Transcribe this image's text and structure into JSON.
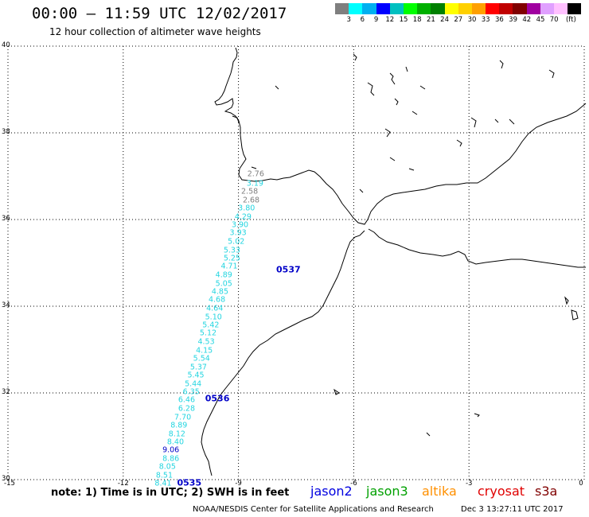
{
  "header": {
    "title": "00:00 – 11:59 UTC 12/02/2017",
    "subtitle": "12 hour collection of altimeter wave heights"
  },
  "color_scale": {
    "unit": "(ft)",
    "colors": [
      "#7f7f7f",
      "#00ffff",
      "#00b0f0",
      "#0000ff",
      "#00c0c0",
      "#00ff00",
      "#00b000",
      "#008000",
      "#ffff00",
      "#ffd000",
      "#ffa000",
      "#ff0000",
      "#c00000",
      "#800000",
      "#a000a0",
      "#e0a0ff",
      "#ffc0ff",
      "#000000"
    ],
    "labels": [
      "3",
      "6",
      "9",
      "12",
      "15",
      "18",
      "21",
      "24",
      "27",
      "30",
      "33",
      "36",
      "39",
      "42",
      "45",
      "70"
    ]
  },
  "map": {
    "lat_labels": [
      "40",
      "38",
      "36",
      "34",
      "32",
      "30"
    ],
    "lon_labels": [
      "-15",
      "-12",
      "-9",
      "-6",
      "-3",
      "0"
    ],
    "passes": [
      "0537",
      "0536",
      "0535"
    ]
  },
  "measurements": [
    {
      "lat": 37.04,
      "lon": -8.55,
      "value": "2.76",
      "color": "grey"
    },
    {
      "lat": 36.83,
      "lon": -8.57,
      "value": "3.19",
      "color": "cyan"
    },
    {
      "lat": 36.64,
      "lon": -8.71,
      "value": "2.58",
      "color": "grey"
    },
    {
      "lat": 36.44,
      "lon": -8.67,
      "value": "2.68",
      "color": "grey"
    },
    {
      "lat": 36.26,
      "lon": -8.79,
      "value": "3.80",
      "color": "cyan"
    },
    {
      "lat": 36.06,
      "lon": -8.88,
      "value": "4.29",
      "color": "cyan"
    },
    {
      "lat": 35.87,
      "lon": -8.96,
      "value": "3.90",
      "color": "cyan"
    },
    {
      "lat": 35.68,
      "lon": -9.01,
      "value": "3.93",
      "color": "cyan"
    },
    {
      "lat": 35.48,
      "lon": -9.06,
      "value": "5.02",
      "color": "cyan"
    },
    {
      "lat": 35.28,
      "lon": -9.17,
      "value": "5.33",
      "color": "cyan"
    },
    {
      "lat": 35.1,
      "lon": -9.17,
      "value": "5.25",
      "color": "cyan"
    },
    {
      "lat": 34.91,
      "lon": -9.24,
      "value": "4.71",
      "color": "cyan"
    },
    {
      "lat": 34.71,
      "lon": -9.38,
      "value": "4.89",
      "color": "cyan"
    },
    {
      "lat": 34.52,
      "lon": -9.38,
      "value": "5.05",
      "color": "cyan"
    },
    {
      "lat": 34.33,
      "lon": -9.48,
      "value": "4.85",
      "color": "cyan"
    },
    {
      "lat": 34.14,
      "lon": -9.56,
      "value": "4.68",
      "color": "cyan"
    },
    {
      "lat": 33.94,
      "lon": -9.62,
      "value": "4.64",
      "color": "cyan"
    },
    {
      "lat": 33.75,
      "lon": -9.65,
      "value": "5.10",
      "color": "cyan"
    },
    {
      "lat": 33.56,
      "lon": -9.72,
      "value": "5.42",
      "color": "cyan"
    },
    {
      "lat": 33.37,
      "lon": -9.79,
      "value": "5.12",
      "color": "cyan"
    },
    {
      "lat": 33.17,
      "lon": -9.84,
      "value": "4.53",
      "color": "cyan"
    },
    {
      "lat": 32.98,
      "lon": -9.89,
      "value": "4.15",
      "color": "cyan"
    },
    {
      "lat": 32.78,
      "lon": -9.96,
      "value": "5.54",
      "color": "cyan"
    },
    {
      "lat": 32.59,
      "lon": -10.04,
      "value": "5.37",
      "color": "cyan"
    },
    {
      "lat": 32.4,
      "lon": -10.11,
      "value": "5.45",
      "color": "cyan"
    },
    {
      "lat": 32.2,
      "lon": -10.18,
      "value": "5.44",
      "color": "cyan"
    },
    {
      "lat": 32.01,
      "lon": -10.23,
      "value": "6.35",
      "color": "cyan"
    },
    {
      "lat": 31.83,
      "lon": -10.35,
      "value": "6.46",
      "color": "cyan"
    },
    {
      "lat": 31.64,
      "lon": -10.35,
      "value": "6.28",
      "color": "cyan"
    },
    {
      "lat": 31.44,
      "lon": -10.45,
      "value": "7.70",
      "color": "cyan"
    },
    {
      "lat": 31.24,
      "lon": -10.55,
      "value": "8.89",
      "color": "cyan"
    },
    {
      "lat": 31.05,
      "lon": -10.6,
      "value": "8.12",
      "color": "cyan"
    },
    {
      "lat": 30.86,
      "lon": -10.64,
      "value": "8.40",
      "color": "cyan"
    },
    {
      "lat": 30.68,
      "lon": -10.76,
      "value": "9.06",
      "color": "blue"
    },
    {
      "lat": 30.48,
      "lon": -10.76,
      "value": "8.86",
      "color": "cyan"
    },
    {
      "lat": 30.29,
      "lon": -10.85,
      "value": "8.05",
      "color": "cyan"
    },
    {
      "lat": 30.1,
      "lon": -10.93,
      "value": "8.51",
      "color": "cyan"
    },
    {
      "lat": 29.91,
      "lon": -10.96,
      "value": "8.41",
      "color": "cyan"
    }
  ],
  "pass_labels": [
    {
      "lat": 34.84,
      "lon": -7.7,
      "text": "0537"
    },
    {
      "lat": 31.88,
      "lon": -9.55,
      "text": "0536"
    },
    {
      "lat": 29.92,
      "lon": -10.28,
      "text": "0535"
    }
  ],
  "footer": {
    "note": "note: 1) Time is in UTC; 2) SWH is in feet",
    "satellites": [
      {
        "name": "jason2",
        "color": "#0000e0"
      },
      {
        "name": "jason3",
        "color": "#00a000"
      },
      {
        "name": "altika",
        "color": "#ff9000"
      },
      {
        "name": "cryosat",
        "color": "#e00000"
      },
      {
        "name": "s3a",
        "color": "#800000"
      }
    ],
    "credit": "NOAA/NESDIS Center for Satellite Applications and Research",
    "timestamp": "Dec  3 13:27:11 UTC 2017"
  }
}
